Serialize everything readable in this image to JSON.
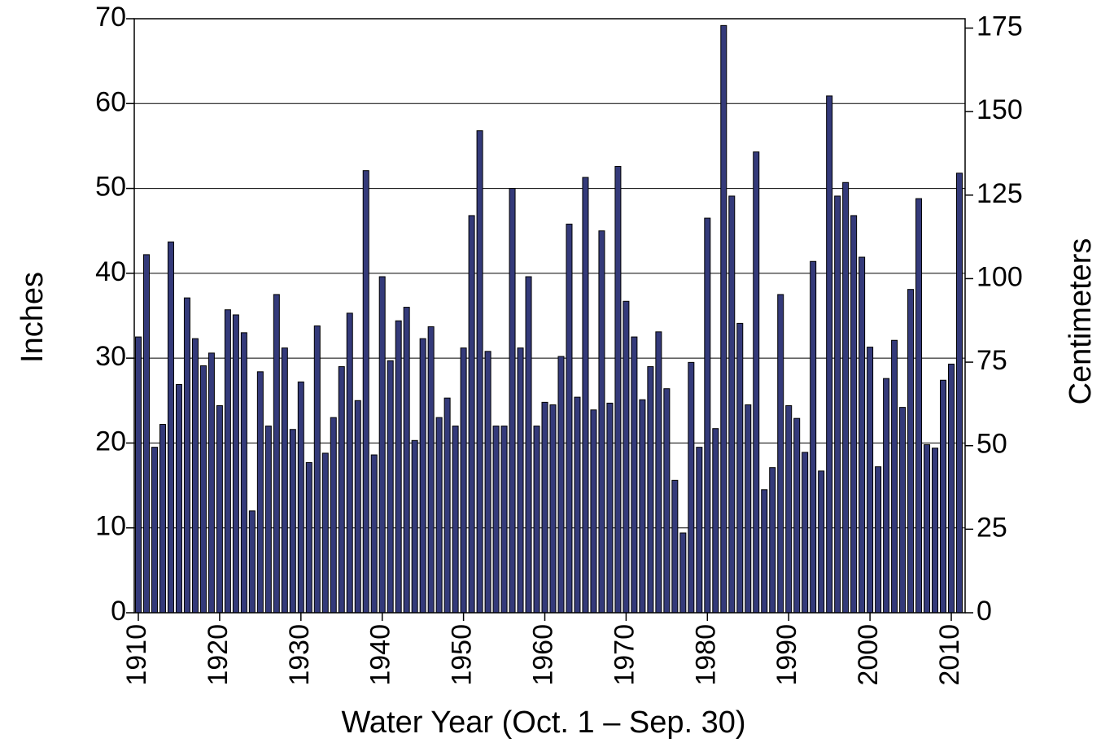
{
  "chart_data": {
    "type": "bar",
    "x_label": "Water Year  (Oct. 1 – Sep. 30)",
    "y_label": "Inches",
    "y2_label": "Centimeters",
    "x": [
      1910,
      1911,
      1912,
      1913,
      1914,
      1915,
      1916,
      1917,
      1918,
      1919,
      1920,
      1921,
      1922,
      1923,
      1924,
      1925,
      1926,
      1927,
      1928,
      1929,
      1930,
      1931,
      1932,
      1933,
      1934,
      1935,
      1936,
      1937,
      1938,
      1939,
      1940,
      1941,
      1942,
      1943,
      1944,
      1945,
      1946,
      1947,
      1948,
      1949,
      1950,
      1951,
      1952,
      1953,
      1954,
      1955,
      1956,
      1957,
      1958,
      1959,
      1960,
      1961,
      1962,
      1963,
      1964,
      1965,
      1966,
      1967,
      1968,
      1969,
      1970,
      1971,
      1972,
      1973,
      1974,
      1975,
      1976,
      1977,
      1978,
      1979,
      1980,
      1981,
      1982,
      1983,
      1984,
      1985,
      1986,
      1987,
      1988,
      1989,
      1990,
      1991,
      1992,
      1993,
      1994,
      1995,
      1996,
      1997,
      1998,
      1999,
      2000,
      2001,
      2002,
      2003,
      2004,
      2005,
      2006,
      2007,
      2008,
      2009,
      2010,
      2011
    ],
    "values": [
      32.5,
      42.2,
      19.5,
      22.2,
      43.7,
      26.9,
      37.1,
      32.3,
      29.1,
      30.6,
      24.4,
      35.7,
      35.1,
      33.0,
      12.0,
      28.4,
      22.0,
      37.5,
      31.2,
      21.6,
      27.2,
      17.7,
      33.8,
      18.8,
      23.0,
      29.0,
      35.3,
      25.0,
      52.1,
      18.6,
      39.6,
      29.7,
      34.4,
      36.0,
      20.3,
      32.3,
      33.7,
      23.0,
      25.3,
      22.0,
      31.2,
      46.8,
      56.8,
      30.8,
      22.0,
      22.0,
      50.0,
      31.2,
      39.6,
      22.0,
      24.8,
      24.5,
      30.2,
      45.8,
      25.4,
      51.3,
      23.9,
      45.0,
      24.7,
      52.6,
      36.7,
      32.5,
      25.1,
      29.0,
      33.1,
      26.4,
      15.6,
      9.4,
      29.5,
      19.5,
      46.5,
      21.7,
      69.2,
      49.1,
      34.1,
      24.5,
      54.3,
      14.5,
      17.1,
      37.5,
      24.4,
      22.9,
      18.9,
      41.4,
      16.7,
      60.9,
      49.1,
      50.7,
      46.8,
      41.9,
      31.3,
      17.2,
      27.6,
      32.1,
      24.2,
      38.1,
      48.8,
      19.8,
      19.4,
      27.4,
      29.3,
      51.8
    ],
    "color": "#343a7a",
    "xlim": [
      1909.5,
      2011.7
    ],
    "xticks": [
      1910,
      1920,
      1930,
      1940,
      1950,
      1960,
      1970,
      1980,
      1990,
      2000,
      2010
    ],
    "ylim": [
      0,
      70
    ],
    "yticks": [
      0,
      10,
      20,
      30,
      40,
      50,
      60,
      70
    ],
    "y2lim": [
      0,
      177.8
    ],
    "y2ticks": [
      0,
      25,
      50,
      75,
      100,
      125,
      150,
      175
    ],
    "grid": true
  }
}
